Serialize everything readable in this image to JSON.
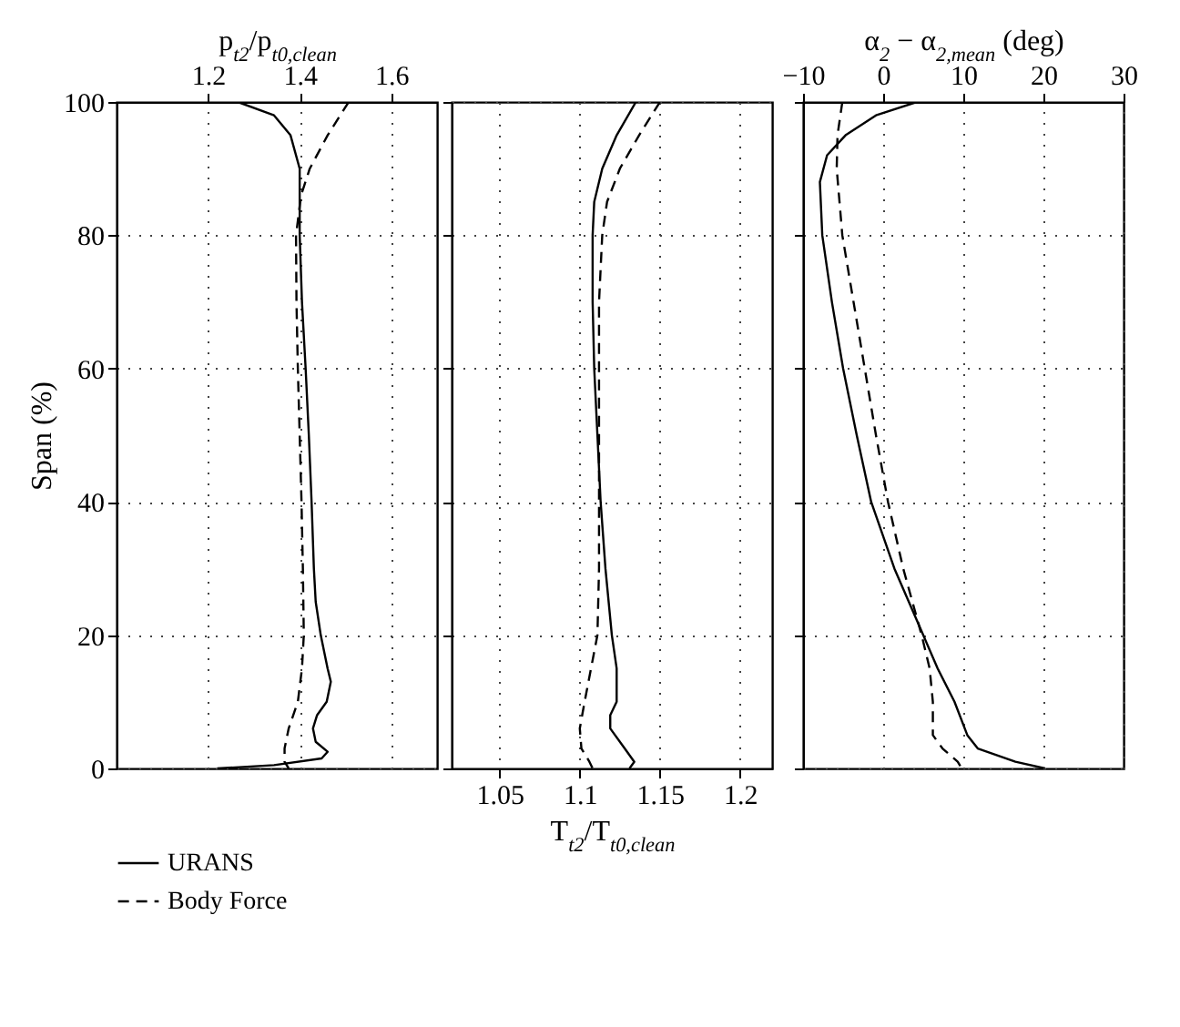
{
  "chart_data": [
    {
      "type": "line",
      "xlabel": "p$_{t2}$/p$_{t0,clean}$",
      "ylabel": "Span (%)",
      "xlim": [
        1.0,
        1.7
      ],
      "xticks": [
        1.2,
        1.4,
        1.6
      ],
      "ylim": [
        0,
        100
      ],
      "yticks": [
        0,
        20,
        40,
        60,
        80,
        100
      ],
      "grid": true,
      "legend": "bottom",
      "series": [
        {
          "name": "URANS",
          "color": "#000000",
          "line_style": "solid",
          "x": [
            1.265,
            1.344,
            1.38,
            1.4,
            1.4,
            1.4,
            1.405,
            1.413,
            1.42,
            1.426,
            1.431,
            1.435,
            1.446,
            1.461,
            1.468,
            1.459,
            1.438,
            1.429,
            1.435,
            1.461,
            1.448,
            1.344,
            1.22
          ],
          "values": [
            100,
            98,
            95,
            90,
            85,
            80,
            70,
            60,
            50,
            40,
            30,
            25,
            20,
            15,
            13,
            10,
            8,
            6,
            4,
            2.5,
            1.5,
            0.5,
            0
          ]
        },
        {
          "name": "Body Force",
          "color": "#000000",
          "line_style": "dashed",
          "x": [
            1.507,
            1.461,
            1.422,
            1.403,
            1.392,
            1.393,
            1.396,
            1.4,
            1.404,
            1.407,
            1.409,
            1.405,
            1.396,
            1.376,
            1.367,
            1.367,
            1.376
          ],
          "values": [
            100,
            95,
            90,
            86,
            80,
            70,
            60,
            50,
            40,
            30,
            20,
            15,
            10,
            6,
            3,
            1,
            0
          ]
        }
      ]
    },
    {
      "type": "line",
      "xlabel": "T$_{t2}$/T$_{t0,clean}$",
      "xlim": [
        1.02,
        1.22
      ],
      "xticks": [
        1.05,
        1.1,
        1.15,
        1.2
      ],
      "ylim": [
        0,
        100
      ],
      "yticks": [
        0,
        20,
        40,
        60,
        80,
        100
      ],
      "grid": true,
      "tick_labels": "x",
      "series": [
        {
          "color": "#000000",
          "line_style": "solid",
          "x": [
            1.135,
            1.123,
            1.114,
            1.109,
            1.108,
            1.108,
            1.109,
            1.111,
            1.113,
            1.116,
            1.12,
            1.123,
            1.123,
            1.119,
            1.119,
            1.128,
            1.134,
            1.131
          ],
          "values": [
            100,
            95,
            90,
            85,
            80,
            70,
            60,
            50,
            40,
            30,
            20,
            15,
            10,
            8,
            6,
            3,
            1,
            0
          ]
        },
        {
          "color": "#000000",
          "line_style": "dashed",
          "x": [
            1.15,
            1.137,
            1.125,
            1.117,
            1.114,
            1.112,
            1.112,
            1.112,
            1.112,
            1.112,
            1.111,
            1.107,
            1.103,
            1.1,
            1.101,
            1.106,
            1.108
          ],
          "values": [
            100,
            95,
            90,
            85,
            80,
            70,
            60,
            50,
            40,
            30,
            20,
            15,
            10,
            6,
            3,
            1,
            0
          ]
        }
      ]
    },
    {
      "type": "line",
      "xlabel": "α$_{2}$ − α$_{2,mean}$ (deg)",
      "xlim": [
        -10,
        30
      ],
      "xticks": [
        -10,
        0,
        10,
        20,
        30
      ],
      "ylim": [
        0,
        100
      ],
      "yticks": [
        0,
        20,
        40,
        60,
        80,
        100
      ],
      "grid": true,
      "tick_labels": "x",
      "series": [
        {
          "color": "#000000",
          "line_style": "solid",
          "x": [
            4.2,
            -0.9,
            -4.7,
            -7.0,
            -7.9,
            -7.6,
            -6.4,
            -5.0,
            -3.3,
            -1.5,
            1.4,
            5.0,
            6.8,
            8.9,
            10.5,
            11.8,
            16.5,
            20.2
          ],
          "values": [
            100,
            98,
            95,
            92,
            88,
            80,
            70,
            60,
            50,
            40,
            30,
            20,
            15,
            10,
            5,
            3,
            1,
            0
          ]
        },
        {
          "color": "#000000",
          "line_style": "dashed",
          "x": [
            -5.1,
            -5.7,
            -5.8,
            -5.1,
            -3.7,
            -2.3,
            -0.9,
            0.6,
            2.5,
            4.8,
            5.8,
            6.2,
            6.2,
            7.4,
            9.3,
            9.8
          ],
          "values": [
            100,
            95,
            90,
            80,
            70,
            60,
            50,
            40,
            30,
            20,
            15,
            10,
            5,
            3,
            1,
            0
          ]
        }
      ]
    }
  ]
}
